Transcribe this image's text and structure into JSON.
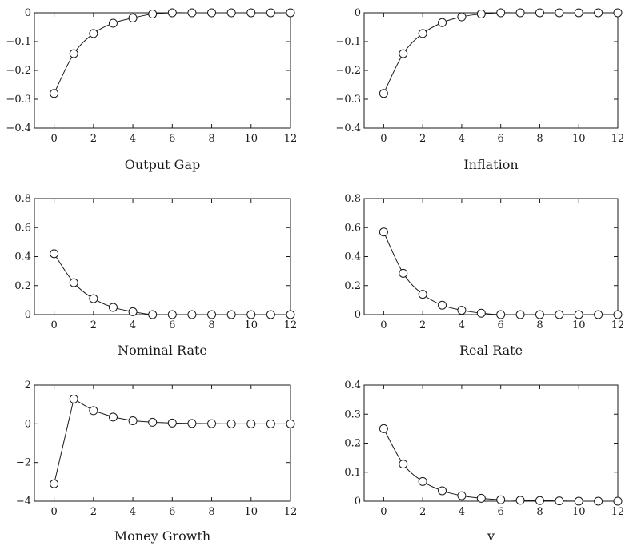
{
  "chart_data": [
    {
      "type": "line",
      "title": "Output Gap",
      "x": [
        0,
        1,
        2,
        3,
        4,
        5,
        6,
        7,
        8,
        9,
        10,
        11,
        12
      ],
      "values": [
        -0.28,
        -0.142,
        -0.072,
        -0.036,
        -0.018,
        -0.004,
        0,
        0,
        0,
        0,
        0,
        0,
        0
      ],
      "xlim": [
        -1,
        12
      ],
      "ylim": [
        -0.4,
        0
      ],
      "xticks": [
        0,
        2,
        4,
        6,
        8,
        10,
        12
      ],
      "yticks": [
        0,
        -0.1,
        -0.2,
        -0.3,
        -0.4
      ],
      "ytick_labels": [
        "0",
        "−0.1",
        "−0.2",
        "−0.3",
        "−0.4"
      ],
      "smooth": true,
      "grid": false
    },
    {
      "type": "line",
      "title": "Inflation",
      "x": [
        0,
        1,
        2,
        3,
        4,
        5,
        6,
        7,
        8,
        9,
        10,
        11,
        12
      ],
      "values": [
        -0.28,
        -0.142,
        -0.072,
        -0.034,
        -0.014,
        -0.004,
        0,
        0,
        0,
        0,
        0,
        0,
        0
      ],
      "xlim": [
        -1,
        12
      ],
      "ylim": [
        -0.4,
        0
      ],
      "xticks": [
        0,
        2,
        4,
        6,
        8,
        10,
        12
      ],
      "yticks": [
        0,
        -0.1,
        -0.2,
        -0.3,
        -0.4
      ],
      "ytick_labels": [
        "0",
        "−0.1",
        "−0.2",
        "−0.3",
        "−0.4"
      ],
      "smooth": true,
      "grid": false
    },
    {
      "type": "line",
      "title": "Nominal Rate",
      "x": [
        0,
        1,
        2,
        3,
        4,
        5,
        6,
        7,
        8,
        9,
        10,
        11,
        12
      ],
      "values": [
        0.42,
        0.22,
        0.11,
        0.05,
        0.02,
        0,
        0,
        0,
        0,
        0,
        0,
        0,
        0
      ],
      "xlim": [
        -1,
        12
      ],
      "ylim": [
        0,
        0.8
      ],
      "xticks": [
        0,
        2,
        4,
        6,
        8,
        10,
        12
      ],
      "yticks": [
        0,
        0.2,
        0.4,
        0.6,
        0.8
      ],
      "ytick_labels": [
        "0",
        "0.2",
        "0.4",
        "0.6",
        "0.8"
      ],
      "smooth": true,
      "grid": false
    },
    {
      "type": "line",
      "title": "Real Rate",
      "x": [
        0,
        1,
        2,
        3,
        4,
        5,
        6,
        7,
        8,
        9,
        10,
        11,
        12
      ],
      "values": [
        0.57,
        0.285,
        0.14,
        0.065,
        0.03,
        0.01,
        0,
        0,
        0,
        0,
        0,
        0,
        0
      ],
      "xlim": [
        -1,
        12
      ],
      "ylim": [
        0,
        0.8
      ],
      "xticks": [
        0,
        2,
        4,
        6,
        8,
        10,
        12
      ],
      "yticks": [
        0,
        0.2,
        0.4,
        0.6,
        0.8
      ],
      "ytick_labels": [
        "0",
        "0.2",
        "0.4",
        "0.6",
        "0.8"
      ],
      "smooth": true,
      "grid": false
    },
    {
      "type": "line",
      "title": "Money Growth",
      "x": [
        0,
        1,
        2,
        3,
        4,
        5,
        6,
        7,
        8,
        9,
        10,
        11,
        12
      ],
      "values": [
        -3.1,
        1.28,
        0.68,
        0.35,
        0.16,
        0.08,
        0.04,
        0.02,
        0.01,
        0,
        0,
        0,
        0
      ],
      "xlim": [
        -1,
        12
      ],
      "ylim": [
        -4,
        2
      ],
      "xticks": [
        0,
        2,
        4,
        6,
        8,
        10,
        12
      ],
      "yticks": [
        2,
        0,
        -2,
        -4
      ],
      "ytick_labels": [
        "2",
        "0",
        "−2",
        "−4"
      ],
      "smooth": false,
      "grid": false
    },
    {
      "type": "line",
      "title": "v",
      "x": [
        0,
        1,
        2,
        3,
        4,
        5,
        6,
        7,
        8,
        9,
        10,
        11,
        12
      ],
      "values": [
        0.25,
        0.128,
        0.068,
        0.036,
        0.019,
        0.01,
        0.005,
        0.003,
        0.002,
        0.001,
        0,
        0,
        0
      ],
      "xlim": [
        -1,
        12
      ],
      "ylim": [
        0,
        0.4
      ],
      "xticks": [
        0,
        2,
        4,
        6,
        8,
        10,
        12
      ],
      "yticks": [
        0,
        0.1,
        0.2,
        0.3,
        0.4
      ],
      "ytick_labels": [
        "0",
        "0.1",
        "0.2",
        "0.3",
        "0.4"
      ],
      "smooth": true,
      "grid": false
    }
  ]
}
